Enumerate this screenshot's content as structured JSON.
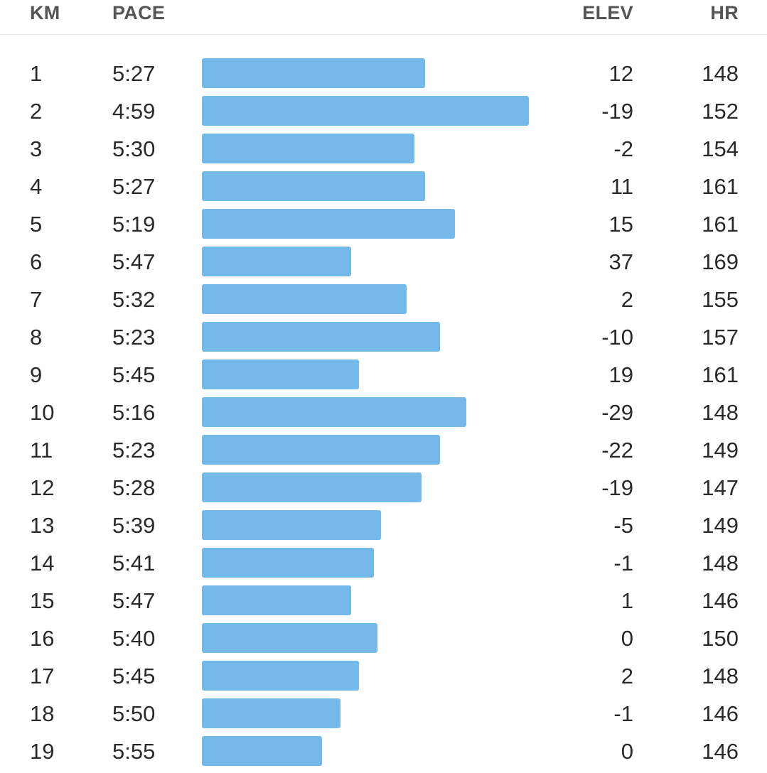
{
  "header": {
    "km": "KM",
    "pace": "PACE",
    "elev": "ELEV",
    "hr": "HR"
  },
  "colors": {
    "bar": "#74b9ea",
    "divider": "#e2e2e2"
  },
  "bar_scale": {
    "fastest_pace_seconds": 299
  },
  "splits": [
    {
      "km": "1",
      "pace": "5:27",
      "elev": "12",
      "hr": "148"
    },
    {
      "km": "2",
      "pace": "4:59",
      "elev": "-19",
      "hr": "152"
    },
    {
      "km": "3",
      "pace": "5:30",
      "elev": "-2",
      "hr": "154"
    },
    {
      "km": "4",
      "pace": "5:27",
      "elev": "11",
      "hr": "161"
    },
    {
      "km": "5",
      "pace": "5:19",
      "elev": "15",
      "hr": "161"
    },
    {
      "km": "6",
      "pace": "5:47",
      "elev": "37",
      "hr": "169"
    },
    {
      "km": "7",
      "pace": "5:32",
      "elev": "2",
      "hr": "155"
    },
    {
      "km": "8",
      "pace": "5:23",
      "elev": "-10",
      "hr": "157"
    },
    {
      "km": "9",
      "pace": "5:45",
      "elev": "19",
      "hr": "161"
    },
    {
      "km": "10",
      "pace": "5:16",
      "elev": "-29",
      "hr": "148"
    },
    {
      "km": "11",
      "pace": "5:23",
      "elev": "-22",
      "hr": "149"
    },
    {
      "km": "12",
      "pace": "5:28",
      "elev": "-19",
      "hr": "147"
    },
    {
      "km": "13",
      "pace": "5:39",
      "elev": "-5",
      "hr": "149"
    },
    {
      "km": "14",
      "pace": "5:41",
      "elev": "-1",
      "hr": "148"
    },
    {
      "km": "15",
      "pace": "5:47",
      "elev": "1",
      "hr": "146"
    },
    {
      "km": "16",
      "pace": "5:40",
      "elev": "0",
      "hr": "150"
    },
    {
      "km": "17",
      "pace": "5:45",
      "elev": "2",
      "hr": "148"
    },
    {
      "km": "18",
      "pace": "5:50",
      "elev": "-1",
      "hr": "146"
    },
    {
      "km": "19",
      "pace": "5:55",
      "elev": "0",
      "hr": "146"
    }
  ]
}
